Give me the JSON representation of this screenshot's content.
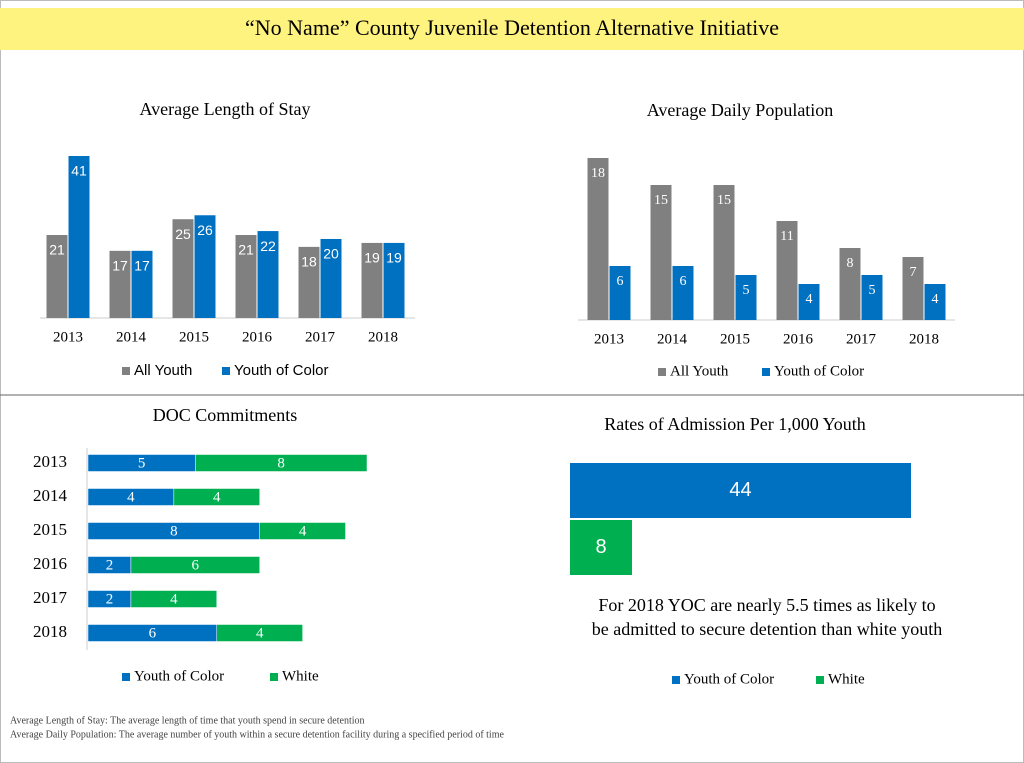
{
  "title": "“No Name” County Juvenile Detention Alternative Initiative",
  "footnotes": [
    "Average Length of Stay: The average length of time that youth spend in secure detention",
    "Average Daily Population: The average number of youth within a secure detention facility during a specified period of time"
  ],
  "chart_data": [
    {
      "type": "bar",
      "title": "Average Length of Stay",
      "categories": [
        "2013",
        "2014",
        "2015",
        "2016",
        "2017",
        "2018"
      ],
      "series": [
        {
          "name": "All Youth",
          "color": "#808080",
          "values": [
            21,
            17,
            25,
            21,
            18,
            19
          ]
        },
        {
          "name": "Youth of Color",
          "color": "#0070c0",
          "values": [
            41,
            17,
            26,
            22,
            20,
            19
          ]
        }
      ]
    },
    {
      "type": "bar",
      "title": "Average Daily Population",
      "categories": [
        "2013",
        "2014",
        "2015",
        "2016",
        "2017",
        "2018"
      ],
      "series": [
        {
          "name": "All Youth",
          "color": "#808080",
          "values": [
            18,
            15,
            15,
            11,
            8,
            7
          ]
        },
        {
          "name": "Youth of Color",
          "color": "#0070c0",
          "values": [
            6,
            6,
            5,
            4,
            5,
            4
          ]
        }
      ]
    },
    {
      "type": "bar",
      "orientation": "horizontal",
      "stacked": true,
      "title": "DOC Commitments",
      "categories": [
        "2013",
        "2014",
        "2015",
        "2016",
        "2017",
        "2018"
      ],
      "series": [
        {
          "name": "Youth of Color",
          "color": "#0070c0",
          "values": [
            5,
            4,
            8,
            2,
            2,
            6
          ]
        },
        {
          "name": "White",
          "color": "#00b050",
          "values": [
            8,
            4,
            4,
            6,
            4,
            4
          ]
        }
      ]
    },
    {
      "type": "bar",
      "orientation": "horizontal",
      "title": "Rates of Admission Per 1,000 Youth",
      "series": [
        {
          "name": "Youth of Color",
          "color": "#0070c0",
          "values": [
            44
          ]
        },
        {
          "name": "White",
          "color": "#00b050",
          "values": [
            8
          ]
        }
      ],
      "annotation": [
        "For 2018 YOC are nearly 5.5 times as likely to",
        "be admitted to secure detention than white youth"
      ]
    }
  ]
}
